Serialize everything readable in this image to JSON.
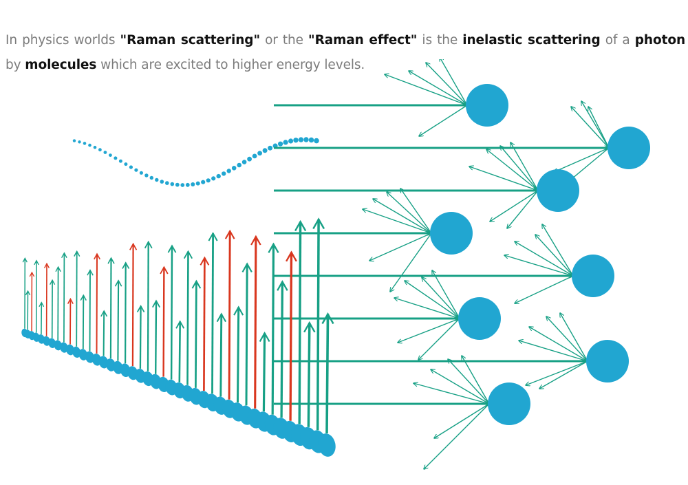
{
  "text": {
    "intro_prefix": "In physics worlds ",
    "term_raman_scattering": "\"Raman scattering\"",
    "intro_or": " or the ",
    "term_raman_effect": "\"Raman effect\"",
    "intro_is_the": " is the ",
    "term_inelastic_scattering": "inelastic scattering",
    "intro_of_a": " of a ",
    "term_photon": "photon",
    "intro_by": " by ",
    "term_molecules": "molecules",
    "intro_suffix": " which are excited to higher energy levels."
  },
  "colors": {
    "teal": "#17a085",
    "red": "#d9371f",
    "molecule_blue": "#21a6d1",
    "text_gray": "#7b7b7b",
    "text_bold": "#111111"
  },
  "icons": [
    "molecule-circle",
    "photon-arrow",
    "scatter-ray",
    "wave-dot"
  ]
}
